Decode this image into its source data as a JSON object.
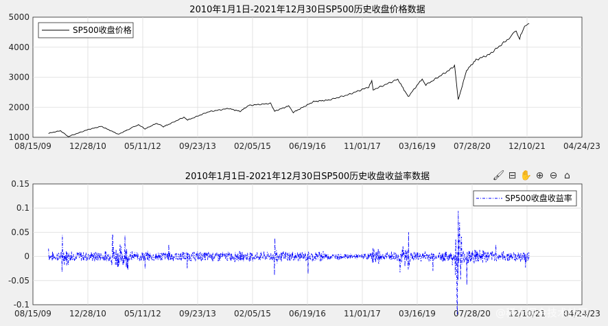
{
  "toolbar": {
    "icons": [
      "brush-icon",
      "data-tip-icon",
      "pan-hand-icon",
      "zoom-in-icon",
      "zoom-out-icon",
      "home-icon"
    ]
  },
  "watermark": "@稀土掘金技术社区",
  "chart_data": [
    {
      "type": "line",
      "title": "2010年1月1日-2021年12月30日SP500历史收盘价格数据",
      "xlabel": "",
      "ylabel": "",
      "x_ticks": [
        "08/15/09",
        "12/28/10",
        "05/11/12",
        "09/23/13",
        "02/05/15",
        "06/19/16",
        "11/01/17",
        "03/16/19",
        "07/28/20",
        "12/10/21",
        "04/24/23"
      ],
      "y_ticks": [
        "1000",
        "2000",
        "3000",
        "4000",
        "5000"
      ],
      "xlim": [
        "2009-08-15",
        "2023-04-24"
      ],
      "ylim": [
        1000,
        5000
      ],
      "grid": true,
      "legend_position": "top-left",
      "series": [
        {
          "name": "SP500收盘价格",
          "color": "#000000",
          "style": "solid",
          "x": [
            "2010-01-04",
            "2010-04-23",
            "2010-07-02",
            "2010-12-31",
            "2011-04-29",
            "2011-10-03",
            "2011-12-30",
            "2012-04-02",
            "2012-06-01",
            "2012-09-14",
            "2012-11-15",
            "2012-12-31",
            "2013-05-21",
            "2013-06-24",
            "2013-12-31",
            "2014-06-30",
            "2014-10-15",
            "2014-12-31",
            "2015-07-20",
            "2015-08-25",
            "2015-12-31",
            "2016-02-11",
            "2016-08-15",
            "2016-12-30",
            "2017-06-30",
            "2017-12-29",
            "2018-01-26",
            "2018-02-08",
            "2018-09-20",
            "2018-12-24",
            "2019-04-30",
            "2019-06-03",
            "2019-12-31",
            "2020-02-19",
            "2020-03-23",
            "2020-06-08",
            "2020-09-02",
            "2020-12-31",
            "2021-06-30",
            "2021-09-02",
            "2021-10-04",
            "2021-11-18",
            "2021-12-30"
          ],
          "y": [
            1133,
            1217,
            1022,
            1258,
            1364,
            1099,
            1258,
            1419,
            1278,
            1466,
            1353,
            1426,
            1669,
            1573,
            1848,
            1960,
            1862,
            2059,
            2128,
            1868,
            2044,
            1829,
            2190,
            2239,
            2423,
            2674,
            2873,
            2581,
            2931,
            2351,
            2946,
            2744,
            3231,
            3386,
            2237,
            3232,
            3580,
            3756,
            4298,
            4537,
            4300,
            4705,
            4778
          ]
        }
      ]
    },
    {
      "type": "line",
      "title": "2010年1月1日-2021年12月30日SP500历史收盘收益率数据",
      "xlabel": "",
      "ylabel": "",
      "x_ticks": [
        "08/15/09",
        "12/28/10",
        "05/11/12",
        "09/23/13",
        "02/05/15",
        "06/19/16",
        "11/01/17",
        "03/16/19",
        "07/28/20",
        "12/10/21",
        "04/24/23"
      ],
      "y_ticks": [
        "-0.1",
        "-0.05",
        "0",
        "0.05",
        "0.1",
        "0.15"
      ],
      "xlim": [
        "2009-08-15",
        "2023-04-24"
      ],
      "ylim": [
        -0.1,
        0.15
      ],
      "grid": true,
      "legend_position": "top-right",
      "series": [
        {
          "name": "SP500收盘收益率",
          "color": "#0000ff",
          "style": "dash-dot",
          "x": [
            "2010-01-04",
            "2010-05-06",
            "2010-05-10",
            "2010-08-01",
            "2011-03-01",
            "2011-08-08",
            "2011-08-09",
            "2011-08-11",
            "2011-11-30",
            "2012-06-01",
            "2013-01-02",
            "2013-06-20",
            "2014-10-15",
            "2015-08-24",
            "2015-08-26",
            "2016-06-24",
            "2016-11-09",
            "2017-06-01",
            "2018-02-05",
            "2018-02-06",
            "2018-10-10",
            "2018-12-24",
            "2018-12-26",
            "2019-08-05",
            "2020-01-31",
            "2020-03-12",
            "2020-03-16",
            "2020-03-24",
            "2020-04-06",
            "2020-06-11",
            "2020-11-09",
            "2021-03-01",
            "2021-11-26",
            "2021-12-01",
            "2021-12-30"
          ],
          "y": [
            0.016,
            -0.032,
            0.044,
            0.01,
            -0.01,
            -0.067,
            0.046,
            0.045,
            0.043,
            -0.025,
            0.025,
            -0.025,
            -0.008,
            -0.039,
            0.038,
            -0.036,
            0.011,
            0.004,
            -0.041,
            0.017,
            -0.033,
            -0.027,
            0.05,
            -0.03,
            -0.018,
            -0.095,
            -0.12,
            0.094,
            0.07,
            -0.059,
            0.012,
            0.024,
            -0.023,
            -0.012,
            -0.003
          ]
        }
      ]
    }
  ]
}
